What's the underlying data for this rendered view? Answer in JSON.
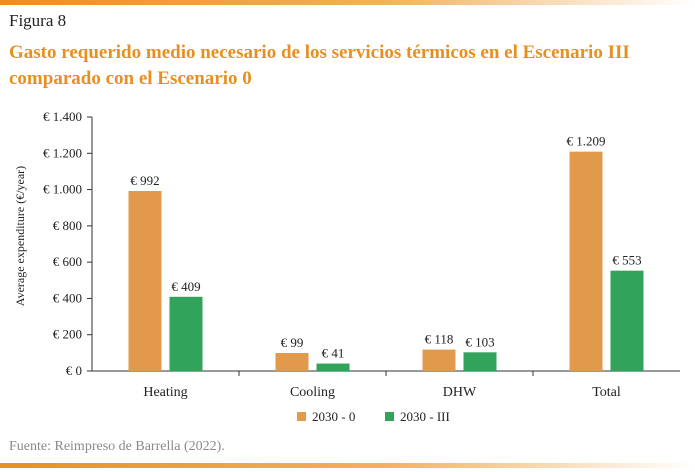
{
  "figure_label": "Figura 8",
  "title": "Gasto requerido medio necesario de los servicios térmicos en el Escenario III comparado con el Escenario 0",
  "source": "Fuente: Reimpreso de Barrella (2022).",
  "colors": {
    "accent": "#e8901f",
    "series_2030_0": "#e1994b",
    "series_2030_III": "#31a35a"
  },
  "chart_data": {
    "type": "bar",
    "categories": [
      "Heating",
      "Cooling",
      "DHW",
      "Total"
    ],
    "series": [
      {
        "name": "2030 - 0",
        "values": [
          992,
          99,
          118,
          1209
        ],
        "labels": [
          "€ 992",
          "€ 99",
          "€ 118",
          "€ 1.209"
        ]
      },
      {
        "name": "2030 - III",
        "values": [
          409,
          41,
          103,
          553
        ],
        "labels": [
          "€ 409",
          "€ 41",
          "€ 103",
          "€ 553"
        ]
      }
    ],
    "ylabel": "Average expenditure (€/year)",
    "xlabel": "",
    "ylim": [
      0,
      1400
    ],
    "yticks": [
      0,
      200,
      400,
      600,
      800,
      1000,
      1200,
      1400
    ],
    "ytick_labels": [
      "€ 0",
      "€ 200",
      "€ 400",
      "€ 600",
      "€ 800",
      "€ 1.000",
      "€ 1.200",
      "€ 1.400"
    ],
    "grid": false,
    "legend": "bottom"
  }
}
